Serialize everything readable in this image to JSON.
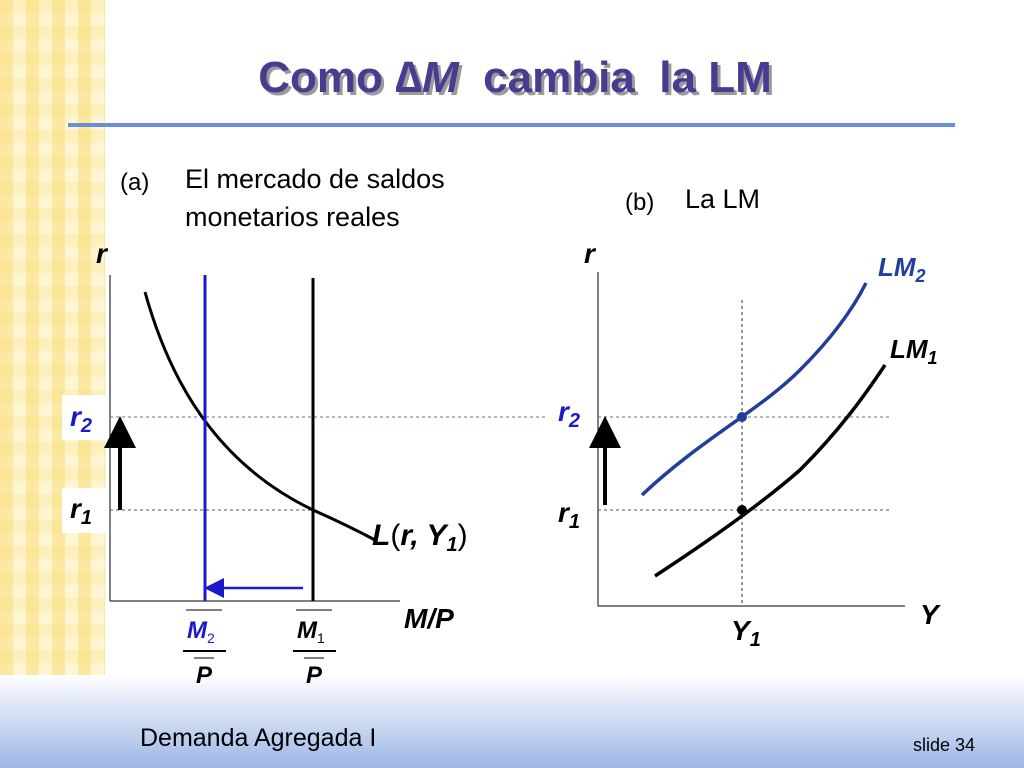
{
  "title": {
    "parts": [
      "Como ",
      "∆",
      "M",
      "  cambia  la LM"
    ]
  },
  "panel_a": {
    "label": "(a)",
    "caption_lines": [
      "El mercado de saldos",
      "monetarios reales"
    ],
    "y_axis": "r",
    "x_axis": "M/P",
    "levels": [
      {
        "symbol": "r",
        "sub": "2"
      },
      {
        "symbol": "r",
        "sub": "1"
      }
    ],
    "curve_label": {
      "parts": [
        "L",
        "(",
        "r, Y",
        "1",
        ")"
      ]
    },
    "supplies": [
      {
        "numerator": "M",
        "sub": "2",
        "denominator": "P"
      },
      {
        "numerator": "M",
        "sub": "1",
        "denominator": "P"
      }
    ]
  },
  "panel_b": {
    "label": "(b)",
    "caption": "La LM",
    "y_axis": "r",
    "x_axis": "Y",
    "levels": [
      {
        "symbol": "r",
        "sub": "2"
      },
      {
        "symbol": "r",
        "sub": "1"
      }
    ],
    "income": {
      "symbol": "Y",
      "sub": "1"
    },
    "curves": [
      {
        "symbol": "LM",
        "sub": "2"
      },
      {
        "symbol": "LM",
        "sub": "1"
      }
    ]
  },
  "footer": {
    "left": "Demanda Agregada I",
    "right": "slide 34"
  }
}
